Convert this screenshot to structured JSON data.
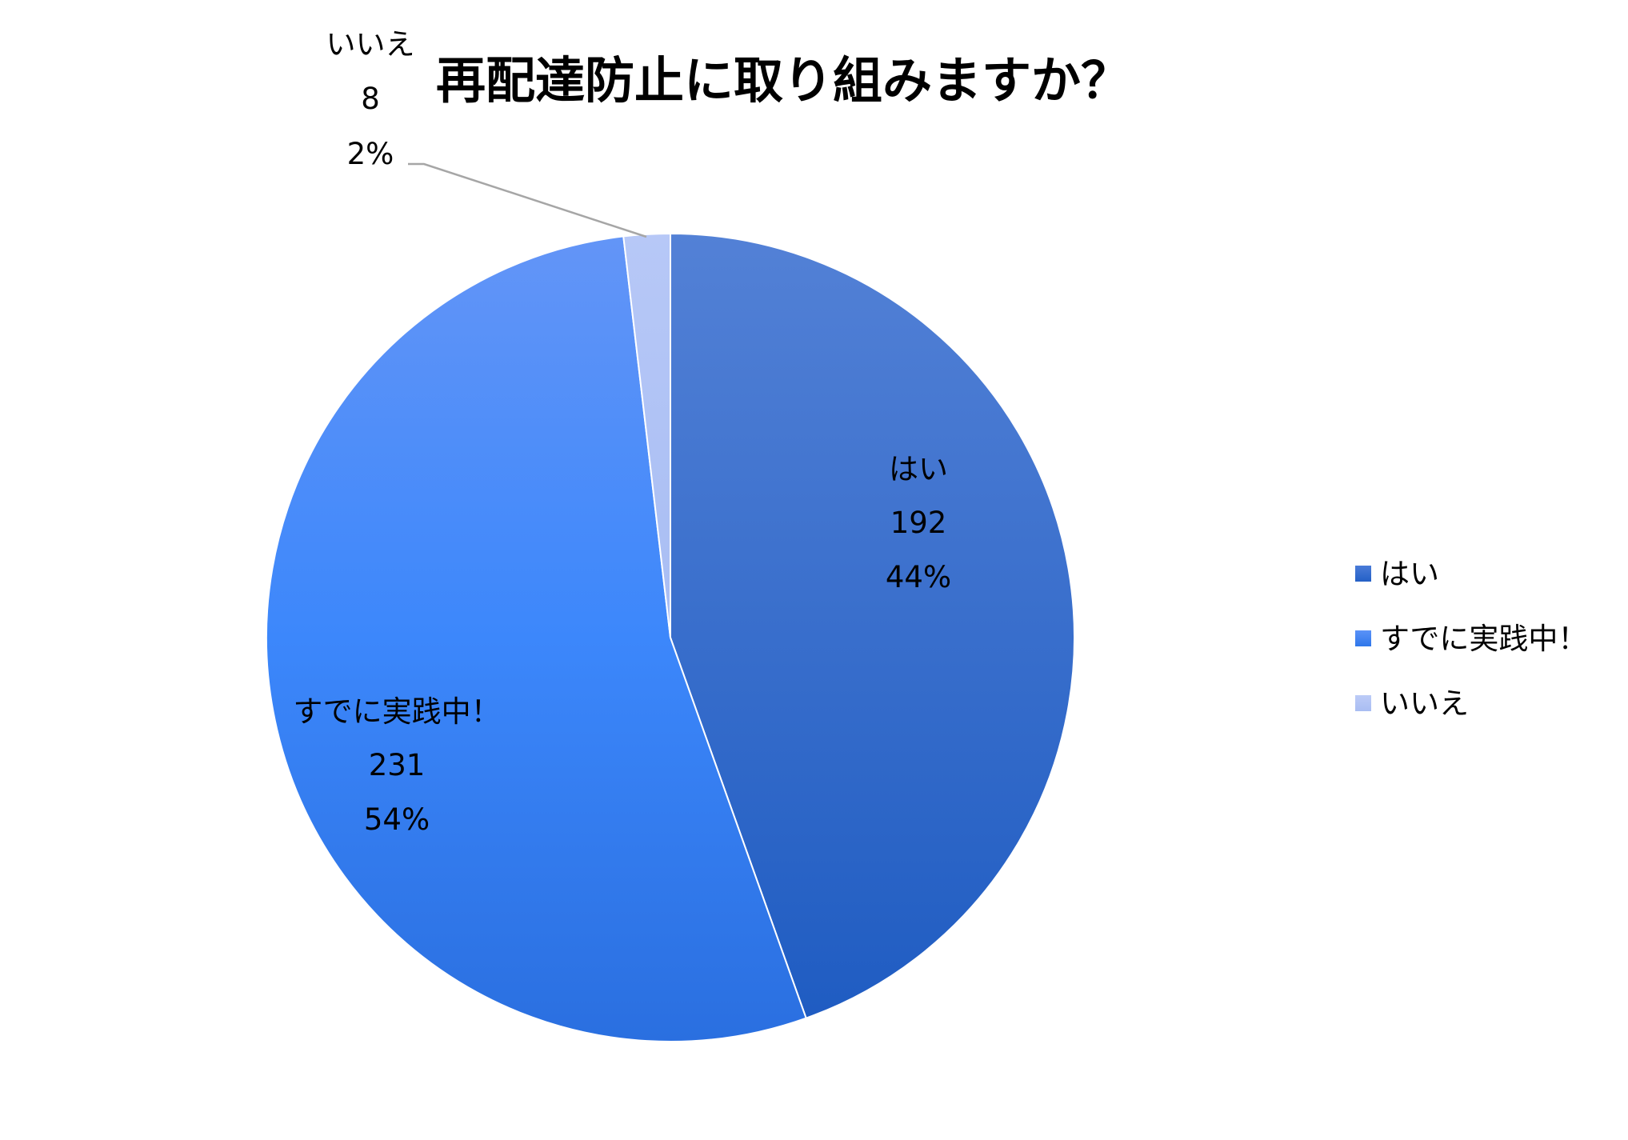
{
  "chart_data": {
    "type": "pie",
    "title": "再配達防止に取り組みますか？",
    "categories": [
      "はい",
      "すでに実践中！",
      "いいえ"
    ],
    "values": [
      192,
      231,
      8
    ],
    "percent_labels": [
      "44%",
      "54%",
      "2%"
    ],
    "colors": [
      "#3f74d2",
      "#3a85f5",
      "#b2c4f5"
    ],
    "legend_position": "right"
  }
}
